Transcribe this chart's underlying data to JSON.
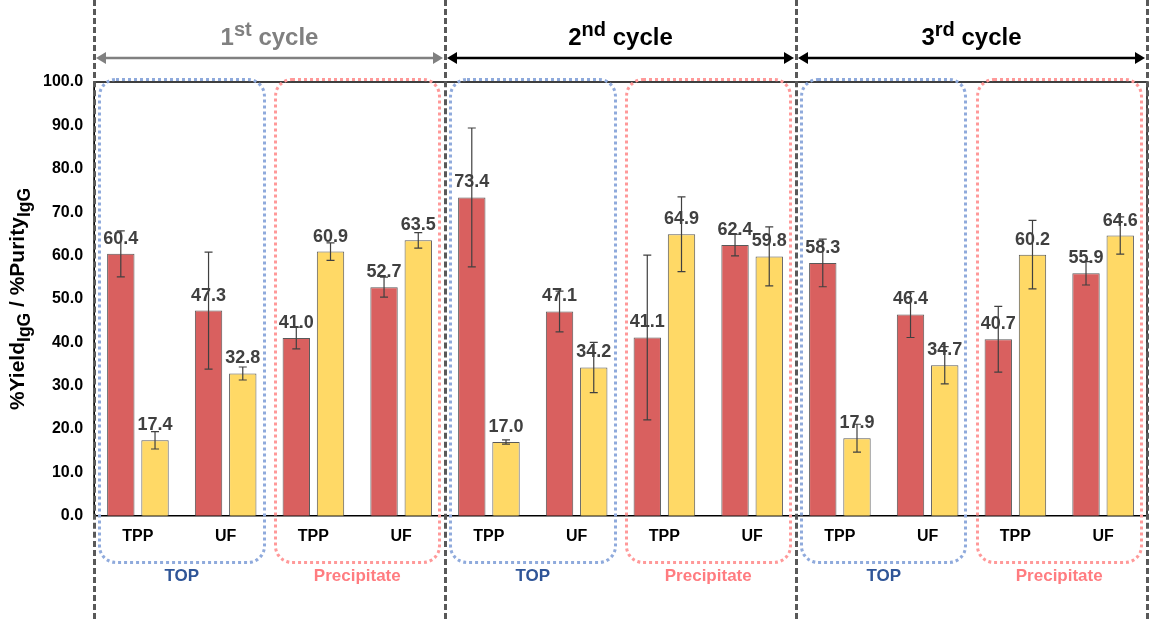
{
  "chart_data": {
    "type": "bar",
    "ylabel": "%Yield$_{IgG}$ / %Purity$_{IgG}$",
    "categories": [
      "TPP",
      "UF",
      "TPP",
      "UF",
      "TPP",
      "UF",
      "TPP",
      "UF",
      "TPP",
      "UF",
      "TPP",
      "UF"
    ],
    "series": [
      {
        "color": "#d9605f",
        "values": [
          60.4,
          47.3,
          41.0,
          52.7,
          73.4,
          47.1,
          41.1,
          62.4,
          58.3,
          46.4,
          40.7,
          55.9
        ],
        "errors": [
          5.3,
          13.5,
          2.5,
          2.3,
          16,
          4.7,
          19,
          2.5,
          5.5,
          5.3,
          7.6,
          2.7
        ],
        "value_labels": [
          "60.4",
          "47.3",
          "41.0",
          "52.7",
          "73.4",
          "47.1",
          "41.1",
          "62.4",
          "58.3",
          "46.4",
          "40.7",
          "55.9"
        ]
      },
      {
        "color": "#ffd966",
        "values": [
          17.4,
          32.8,
          60.9,
          63.5,
          17.0,
          34.2,
          64.9,
          59.8,
          17.9,
          34.7,
          60.2,
          64.6
        ],
        "errors": [
          2,
          1.5,
          2,
          1.8,
          0.5,
          5.8,
          8.6,
          6.8,
          3.2,
          4.3,
          7.9,
          4.3
        ],
        "value_labels": [
          "17.4",
          "32.8",
          "60.9",
          "63.5",
          "17.0",
          "34.2",
          "64.9",
          "59.8",
          "17.9",
          "34.7",
          "60.2",
          "64.6"
        ]
      }
    ],
    "ylim": [
      0,
      100
    ],
    "yticks": [
      {
        "value": 0,
        "label": "0.0"
      },
      {
        "value": 10,
        "label": "10.0"
      },
      {
        "value": 20,
        "label": "20.0"
      },
      {
        "value": 30,
        "label": "30.0"
      },
      {
        "value": 40,
        "label": "40.0"
      },
      {
        "value": 50,
        "label": "50.0"
      },
      {
        "value": 60,
        "label": "60.0"
      },
      {
        "value": 70,
        "label": "70.0"
      },
      {
        "value": 80,
        "label": "80.0"
      },
      {
        "value": 90,
        "label": "90.0"
      },
      {
        "value": 100,
        "label": "100.0"
      }
    ],
    "annotations": [
      "1$^{st}$ cycle",
      "2$^{nd}$ cycle",
      "3$^{rd}$ cycle",
      "TOP",
      "Precipitate",
      "TOP",
      "Precipitate",
      "TOP",
      "Precipitate"
    ]
  }
}
